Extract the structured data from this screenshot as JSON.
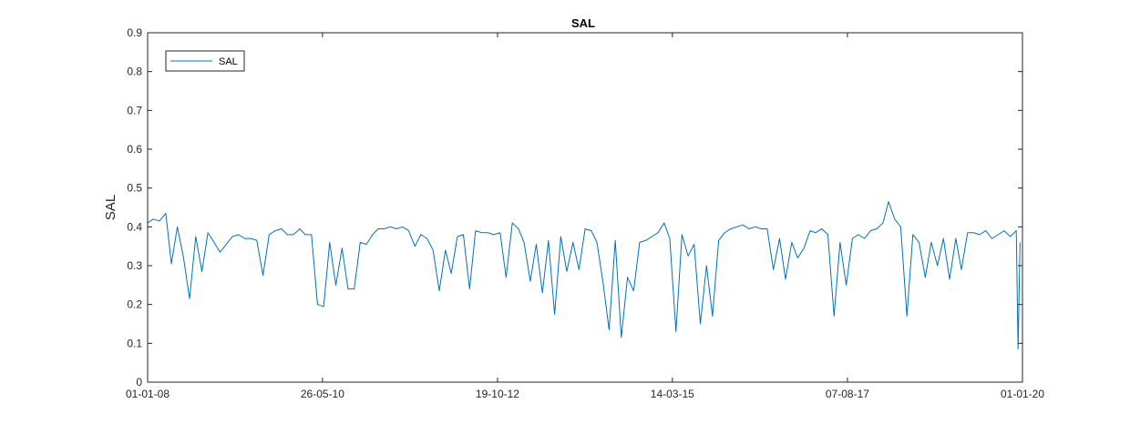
{
  "chart_data": {
    "type": "line",
    "title": "SAL",
    "xlabel": "",
    "ylabel": "SAL",
    "ylim": [
      0,
      0.9
    ],
    "yticks": [
      "0",
      "0.1",
      "0.2",
      "0.3",
      "0.4",
      "0.5",
      "0.6",
      "0.7",
      "0.8",
      "0.9"
    ],
    "xlim": [
      "2008-01-01",
      "2020-01-01"
    ],
    "xticks": [
      {
        "date": "2008-01-01",
        "label": "01-01-08"
      },
      {
        "date": "2010-05-26",
        "label": "26-05-10"
      },
      {
        "date": "2012-10-19",
        "label": "19-10-12"
      },
      {
        "date": "2015-03-14",
        "label": "14-03-15"
      },
      {
        "date": "2017-08-07",
        "label": "07-08-17"
      },
      {
        "date": "2020-01-01",
        "label": "01-01-20"
      }
    ],
    "grid": false,
    "legend": {
      "placement": "top-left",
      "entries": [
        "SAL"
      ]
    },
    "colors": {
      "series": "#0072BD",
      "axis": "#262626"
    },
    "series": [
      {
        "name": "SAL",
        "points": [
          [
            "2008-01-01",
            0.41
          ],
          [
            "2008-01-29",
            0.42
          ],
          [
            "2008-02-29",
            0.415
          ],
          [
            "2008-04-01",
            0.435
          ],
          [
            "2008-04-29",
            0.305
          ],
          [
            "2008-05-29",
            0.4
          ],
          [
            "2008-06-29",
            0.32
          ],
          [
            "2008-07-29",
            0.215
          ],
          [
            "2008-08-29",
            0.375
          ],
          [
            "2008-09-29",
            0.285
          ],
          [
            "2008-10-29",
            0.385
          ],
          [
            "2008-11-29",
            0.36
          ],
          [
            "2008-12-29",
            0.335
          ],
          [
            "2009-01-29",
            0.355
          ],
          [
            "2009-02-28",
            0.375
          ],
          [
            "2009-04-01",
            0.38
          ],
          [
            "2009-05-01",
            0.37
          ],
          [
            "2009-06-01",
            0.37
          ],
          [
            "2009-07-01",
            0.365
          ],
          [
            "2009-08-01",
            0.275
          ],
          [
            "2009-09-01",
            0.38
          ],
          [
            "2009-10-01",
            0.39
          ],
          [
            "2009-11-01",
            0.395
          ],
          [
            "2009-12-01",
            0.38
          ],
          [
            "2010-01-01",
            0.38
          ],
          [
            "2010-02-01",
            0.395
          ],
          [
            "2010-03-01",
            0.38
          ],
          [
            "2010-04-01",
            0.38
          ],
          [
            "2010-05-01",
            0.2
          ],
          [
            "2010-06-01",
            0.195
          ],
          [
            "2010-07-01",
            0.36
          ],
          [
            "2010-08-01",
            0.25
          ],
          [
            "2010-09-01",
            0.345
          ],
          [
            "2010-10-01",
            0.24
          ],
          [
            "2010-11-01",
            0.24
          ],
          [
            "2010-12-01",
            0.36
          ],
          [
            "2011-01-01",
            0.355
          ],
          [
            "2011-02-01",
            0.38
          ],
          [
            "2011-03-01",
            0.395
          ],
          [
            "2011-04-01",
            0.395
          ],
          [
            "2011-05-01",
            0.4
          ],
          [
            "2011-06-01",
            0.395
          ],
          [
            "2011-07-01",
            0.4
          ],
          [
            "2011-08-01",
            0.39
          ],
          [
            "2011-09-01",
            0.35
          ],
          [
            "2011-10-01",
            0.38
          ],
          [
            "2011-11-01",
            0.37
          ],
          [
            "2011-12-01",
            0.34
          ],
          [
            "2012-01-01",
            0.235
          ],
          [
            "2012-02-01",
            0.34
          ],
          [
            "2012-03-01",
            0.28
          ],
          [
            "2012-04-01",
            0.375
          ],
          [
            "2012-05-01",
            0.38
          ],
          [
            "2012-06-01",
            0.24
          ],
          [
            "2012-07-01",
            0.39
          ],
          [
            "2012-08-01",
            0.385
          ],
          [
            "2012-09-01",
            0.385
          ],
          [
            "2012-10-01",
            0.38
          ],
          [
            "2012-11-01",
            0.385
          ],
          [
            "2012-12-01",
            0.27
          ],
          [
            "2013-01-01",
            0.41
          ],
          [
            "2013-02-01",
            0.395
          ],
          [
            "2013-03-01",
            0.36
          ],
          [
            "2013-04-01",
            0.26
          ],
          [
            "2013-05-01",
            0.355
          ],
          [
            "2013-06-01",
            0.23
          ],
          [
            "2013-07-01",
            0.365
          ],
          [
            "2013-08-01",
            0.175
          ],
          [
            "2013-09-01",
            0.375
          ],
          [
            "2013-10-01",
            0.285
          ],
          [
            "2013-11-01",
            0.36
          ],
          [
            "2013-12-01",
            0.29
          ],
          [
            "2014-01-01",
            0.395
          ],
          [
            "2014-02-01",
            0.39
          ],
          [
            "2014-03-01",
            0.36
          ],
          [
            "2014-04-01",
            0.255
          ],
          [
            "2014-05-01",
            0.135
          ],
          [
            "2014-06-01",
            0.365
          ],
          [
            "2014-07-01",
            0.115
          ],
          [
            "2014-08-01",
            0.27
          ],
          [
            "2014-09-01",
            0.235
          ],
          [
            "2014-10-01",
            0.36
          ],
          [
            "2014-11-01",
            0.365
          ],
          [
            "2014-12-01",
            0.375
          ],
          [
            "2015-01-01",
            0.385
          ],
          [
            "2015-02-01",
            0.41
          ],
          [
            "2015-03-01",
            0.37
          ],
          [
            "2015-04-01",
            0.13
          ],
          [
            "2015-05-01",
            0.38
          ],
          [
            "2015-06-01",
            0.325
          ],
          [
            "2015-07-01",
            0.355
          ],
          [
            "2015-08-01",
            0.15
          ],
          [
            "2015-09-01",
            0.3
          ],
          [
            "2015-10-01",
            0.17
          ],
          [
            "2015-11-01",
            0.365
          ],
          [
            "2015-12-01",
            0.385
          ],
          [
            "2016-01-01",
            0.395
          ],
          [
            "2016-02-01",
            0.4
          ],
          [
            "2016-03-01",
            0.405
          ],
          [
            "2016-04-01",
            0.395
          ],
          [
            "2016-05-01",
            0.4
          ],
          [
            "2016-06-01",
            0.395
          ],
          [
            "2016-07-01",
            0.395
          ],
          [
            "2016-08-01",
            0.29
          ],
          [
            "2016-09-01",
            0.37
          ],
          [
            "2016-10-01",
            0.265
          ],
          [
            "2016-11-01",
            0.36
          ],
          [
            "2016-12-01",
            0.32
          ],
          [
            "2017-01-01",
            0.345
          ],
          [
            "2017-02-01",
            0.39
          ],
          [
            "2017-03-01",
            0.385
          ],
          [
            "2017-04-01",
            0.395
          ],
          [
            "2017-05-01",
            0.38
          ],
          [
            "2017-06-01",
            0.17
          ],
          [
            "2017-07-01",
            0.36
          ],
          [
            "2017-08-01",
            0.25
          ],
          [
            "2017-09-01",
            0.37
          ],
          [
            "2017-10-01",
            0.38
          ],
          [
            "2017-11-01",
            0.37
          ],
          [
            "2017-12-01",
            0.39
          ],
          [
            "2018-01-01",
            0.395
          ],
          [
            "2018-02-01",
            0.41
          ],
          [
            "2018-03-01",
            0.465
          ],
          [
            "2018-04-01",
            0.42
          ],
          [
            "2018-05-01",
            0.4
          ],
          [
            "2018-06-01",
            0.17
          ],
          [
            "2018-07-01",
            0.38
          ],
          [
            "2018-08-01",
            0.36
          ],
          [
            "2018-09-01",
            0.27
          ],
          [
            "2018-10-01",
            0.36
          ],
          [
            "2018-11-01",
            0.3
          ],
          [
            "2018-12-01",
            0.37
          ],
          [
            "2019-01-01",
            0.265
          ],
          [
            "2019-02-01",
            0.37
          ],
          [
            "2019-03-01",
            0.29
          ],
          [
            "2019-04-01",
            0.385
          ],
          [
            "2019-05-01",
            0.385
          ],
          [
            "2019-06-01",
            0.38
          ],
          [
            "2019-07-01",
            0.39
          ],
          [
            "2019-08-01",
            0.37
          ],
          [
            "2019-09-01",
            0.38
          ],
          [
            "2019-10-01",
            0.39
          ],
          [
            "2019-11-01",
            0.375
          ],
          [
            "2019-12-01",
            0.39
          ],
          [
            "2019-12-10",
            0.085
          ],
          [
            "2019-12-20",
            0.36
          ]
        ]
      }
    ]
  }
}
